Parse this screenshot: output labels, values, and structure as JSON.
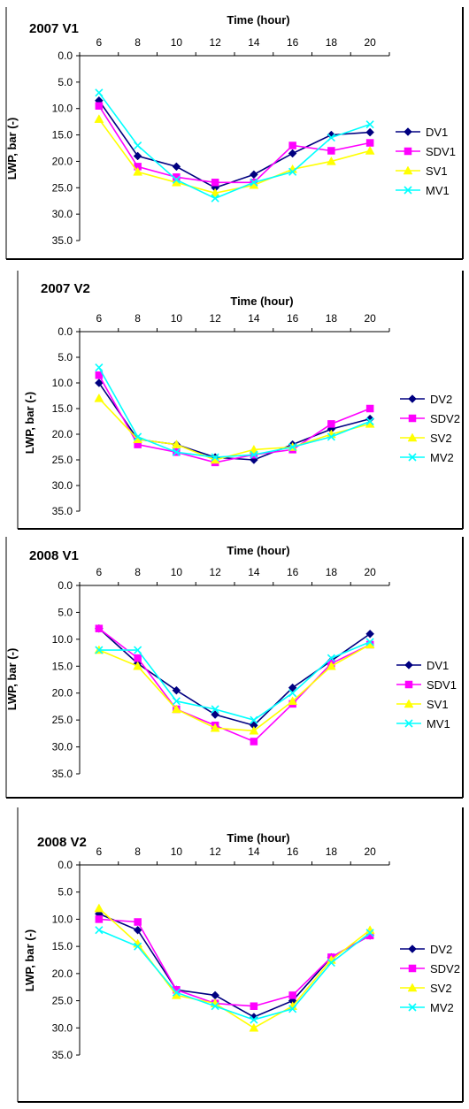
{
  "chart_data": [
    {
      "type": "line",
      "title": "2007 V1",
      "xlabel": "Time (hour)",
      "ylabel": "LWP, bar (-)",
      "x": [
        6,
        8,
        10,
        12,
        14,
        16,
        18,
        20
      ],
      "x_tick_labels": [
        "6",
        "8",
        "10",
        "12",
        "14",
        "16",
        "18",
        "20"
      ],
      "y_tick_labels": [
        "0.0",
        "5.0",
        "10.0",
        "15.0",
        "20.0",
        "25.0",
        "30.0",
        "35.0"
      ],
      "ylim": [
        0,
        35
      ],
      "y_inverted": true,
      "x_axis_position": "top",
      "legend_position": "right",
      "series": [
        {
          "name": "DV1",
          "color": "#000080",
          "marker": "diamond",
          "values": [
            8.5,
            19.0,
            21.0,
            25.0,
            22.5,
            18.5,
            15.0,
            14.5
          ]
        },
        {
          "name": "SDV1",
          "color": "#ff00ff",
          "marker": "square",
          "values": [
            9.5,
            21.0,
            23.0,
            24.0,
            24.0,
            17.0,
            18.0,
            16.5
          ]
        },
        {
          "name": "SV1",
          "color": "#ffff00",
          "marker": "triangle",
          "values": [
            12.0,
            22.0,
            24.0,
            26.0,
            24.5,
            21.5,
            20.0,
            18.0
          ]
        },
        {
          "name": "MV1",
          "color": "#00ffff",
          "marker": "x",
          "values": [
            7.0,
            17.0,
            23.5,
            27.0,
            24.0,
            22.0,
            15.5,
            13.0
          ]
        }
      ]
    },
    {
      "type": "line",
      "title": "2007 V2",
      "xlabel": "Time (hour)",
      "ylabel": "LWP, bar (-)",
      "x": [
        6,
        8,
        10,
        12,
        14,
        16,
        18,
        20
      ],
      "x_tick_labels": [
        "6",
        "8",
        "10",
        "12",
        "14",
        "16",
        "18",
        "20"
      ],
      "y_tick_labels": [
        "0.0",
        "5.0",
        "10.0",
        "15.0",
        "20.0",
        "25.0",
        "30.0",
        "35.0"
      ],
      "ylim": [
        0,
        35
      ],
      "y_inverted": true,
      "x_axis_position": "top",
      "legend_position": "right",
      "series": [
        {
          "name": "DV2",
          "color": "#000080",
          "marker": "diamond",
          "values": [
            10.0,
            21.0,
            22.0,
            24.5,
            25.0,
            22.0,
            19.0,
            17.0
          ]
        },
        {
          "name": "SDV2",
          "color": "#ff00ff",
          "marker": "square",
          "values": [
            8.5,
            22.0,
            23.5,
            25.5,
            24.0,
            23.0,
            18.0,
            15.0
          ]
        },
        {
          "name": "SV2",
          "color": "#ffff00",
          "marker": "triangle",
          "values": [
            13.0,
            21.0,
            22.0,
            25.0,
            23.0,
            22.5,
            20.0,
            18.0
          ]
        },
        {
          "name": "MV2",
          "color": "#00ffff",
          "marker": "x",
          "values": [
            7.0,
            20.5,
            23.5,
            24.5,
            24.0,
            22.5,
            20.5,
            17.5
          ]
        }
      ]
    },
    {
      "type": "line",
      "title": "2008 V1",
      "xlabel": "Time (hour)",
      "ylabel": "LWP, bar (-)",
      "x": [
        6,
        8,
        10,
        12,
        14,
        16,
        18,
        20
      ],
      "x_tick_labels": [
        "6",
        "8",
        "10",
        "12",
        "14",
        "16",
        "18",
        "20"
      ],
      "y_tick_labels": [
        "0.0",
        "5.0",
        "10.0",
        "15.0",
        "20.0",
        "25.0",
        "30.0",
        "35.0"
      ],
      "ylim": [
        0,
        35
      ],
      "y_inverted": true,
      "x_axis_position": "top",
      "legend_position": "right",
      "series": [
        {
          "name": "DV1",
          "color": "#000080",
          "marker": "diamond",
          "values": [
            8.0,
            14.5,
            19.5,
            24.0,
            26.0,
            19.0,
            14.0,
            9.0
          ]
        },
        {
          "name": "SDV1",
          "color": "#ff00ff",
          "marker": "square",
          "values": [
            8.0,
            13.5,
            23.0,
            26.0,
            29.0,
            22.0,
            14.5,
            11.0
          ]
        },
        {
          "name": "SV1",
          "color": "#ffff00",
          "marker": "triangle",
          "values": [
            12.0,
            15.0,
            23.0,
            26.5,
            27.0,
            21.5,
            15.0,
            11.0
          ]
        },
        {
          "name": "MV1",
          "color": "#00ffff",
          "marker": "x",
          "values": [
            12.0,
            12.0,
            21.5,
            23.0,
            25.0,
            20.0,
            13.5,
            10.5
          ]
        }
      ]
    },
    {
      "type": "line",
      "title": "2008 V2",
      "xlabel": "Time (hour)",
      "ylabel": "LWP, bar (-)",
      "x": [
        6,
        8,
        10,
        12,
        14,
        16,
        18,
        20
      ],
      "x_tick_labels": [
        "6",
        "8",
        "10",
        "12",
        "14",
        "16",
        "18",
        "20"
      ],
      "y_tick_labels": [
        "0.0",
        "5.0",
        "10.0",
        "15.0",
        "20.0",
        "25.0",
        "30.0",
        "35.0"
      ],
      "ylim": [
        0,
        35
      ],
      "y_inverted": true,
      "x_axis_position": "top",
      "legend_position": "right",
      "series": [
        {
          "name": "DV2",
          "color": "#000080",
          "marker": "diamond",
          "values": [
            9.0,
            12.0,
            23.0,
            24.0,
            28.0,
            25.0,
            17.0,
            13.0
          ]
        },
        {
          "name": "SDV2",
          "color": "#ff00ff",
          "marker": "square",
          "values": [
            10.0,
            10.5,
            23.0,
            25.5,
            26.0,
            24.0,
            17.0,
            13.0
          ]
        },
        {
          "name": "SV2",
          "color": "#ffff00",
          "marker": "triangle",
          "values": [
            8.0,
            14.5,
            24.0,
            25.5,
            30.0,
            26.0,
            17.5,
            12.0
          ]
        },
        {
          "name": "MV2",
          "color": "#00ffff",
          "marker": "x",
          "values": [
            12.0,
            15.0,
            23.5,
            26.0,
            28.5,
            26.5,
            18.0,
            12.5
          ]
        }
      ]
    }
  ]
}
